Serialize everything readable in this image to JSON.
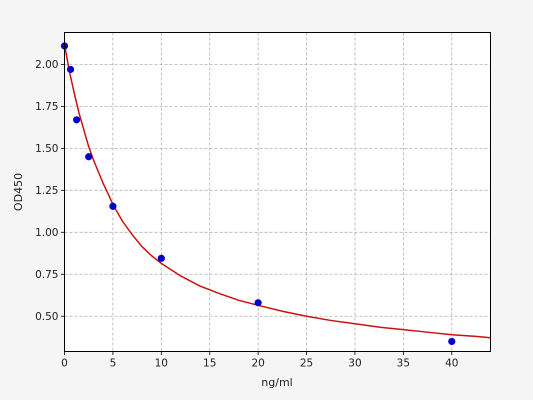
{
  "chart_data": {
    "type": "scatter",
    "title": "",
    "xlabel": "ng/ml",
    "ylabel": "OD450",
    "xlim": [
      0,
      44
    ],
    "ylim": [
      0.29,
      2.19
    ],
    "grid": true,
    "x_ticks": [
      0,
      5,
      10,
      15,
      20,
      25,
      30,
      35,
      40
    ],
    "y_ticks": [
      0.5,
      0.75,
      1.0,
      1.25,
      1.5,
      1.75,
      2.0
    ],
    "x_tick_labels": [
      "0",
      "5",
      "10",
      "15",
      "20",
      "25",
      "30",
      "35",
      "40"
    ],
    "y_tick_labels": [
      "0.50",
      "0.75",
      "1.00",
      "1.25",
      "1.50",
      "1.75",
      "2.00"
    ],
    "series": [
      {
        "kind": "points",
        "color": "#0000cc",
        "x": [
          0,
          0.625,
          1.25,
          2.5,
          5,
          10,
          20,
          40
        ],
        "y": [
          2.11,
          1.97,
          1.67,
          1.45,
          1.155,
          0.845,
          0.58,
          0.35
        ]
      },
      {
        "kind": "fit-curve",
        "color": "#cc1111",
        "x": [
          0,
          0.5,
          1,
          1.5,
          2,
          2.5,
          3,
          3.5,
          4,
          4.5,
          5,
          6,
          7,
          8,
          9,
          10,
          12,
          14,
          16,
          18,
          20,
          22.5,
          25,
          27.5,
          30,
          32.5,
          35,
          37.5,
          40,
          42.5,
          44
        ],
        "y": [
          2.12,
          1.96,
          1.83,
          1.71,
          1.61,
          1.51,
          1.43,
          1.36,
          1.29,
          1.23,
          1.165,
          1.065,
          0.985,
          0.915,
          0.86,
          0.815,
          0.74,
          0.68,
          0.635,
          0.595,
          0.565,
          0.53,
          0.5,
          0.475,
          0.455,
          0.435,
          0.42,
          0.405,
          0.39,
          0.38,
          0.372
        ]
      }
    ]
  }
}
